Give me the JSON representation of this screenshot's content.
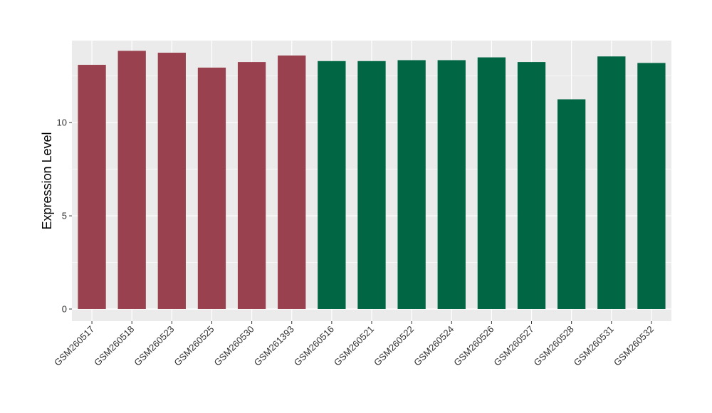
{
  "chart_data": {
    "type": "bar",
    "ylabel": "Expression Level",
    "xlabel": "",
    "ylim": [
      -0.65,
      14.4
    ],
    "yticks": [
      0,
      5,
      10
    ],
    "grid": true,
    "categories": [
      "GSM260517",
      "GSM260518",
      "GSM260523",
      "GSM260525",
      "GSM260530",
      "GSM261393",
      "GSM260516",
      "GSM260521",
      "GSM260522",
      "GSM260524",
      "GSM260526",
      "GSM260527",
      "GSM260528",
      "GSM260531",
      "GSM260532"
    ],
    "values": [
      13.1,
      13.85,
      13.75,
      12.95,
      13.25,
      13.6,
      13.3,
      13.3,
      13.35,
      13.35,
      13.5,
      13.25,
      11.25,
      13.55,
      13.2
    ],
    "colors": [
      "#9A4150",
      "#9A4150",
      "#9A4150",
      "#9A4150",
      "#9A4150",
      "#9A4150",
      "#006644",
      "#006644",
      "#006644",
      "#006644",
      "#006644",
      "#006644",
      "#006644",
      "#006644",
      "#006644"
    ],
    "panel_background": "#EBEBEB",
    "grid_color": "#FFFFFF"
  }
}
